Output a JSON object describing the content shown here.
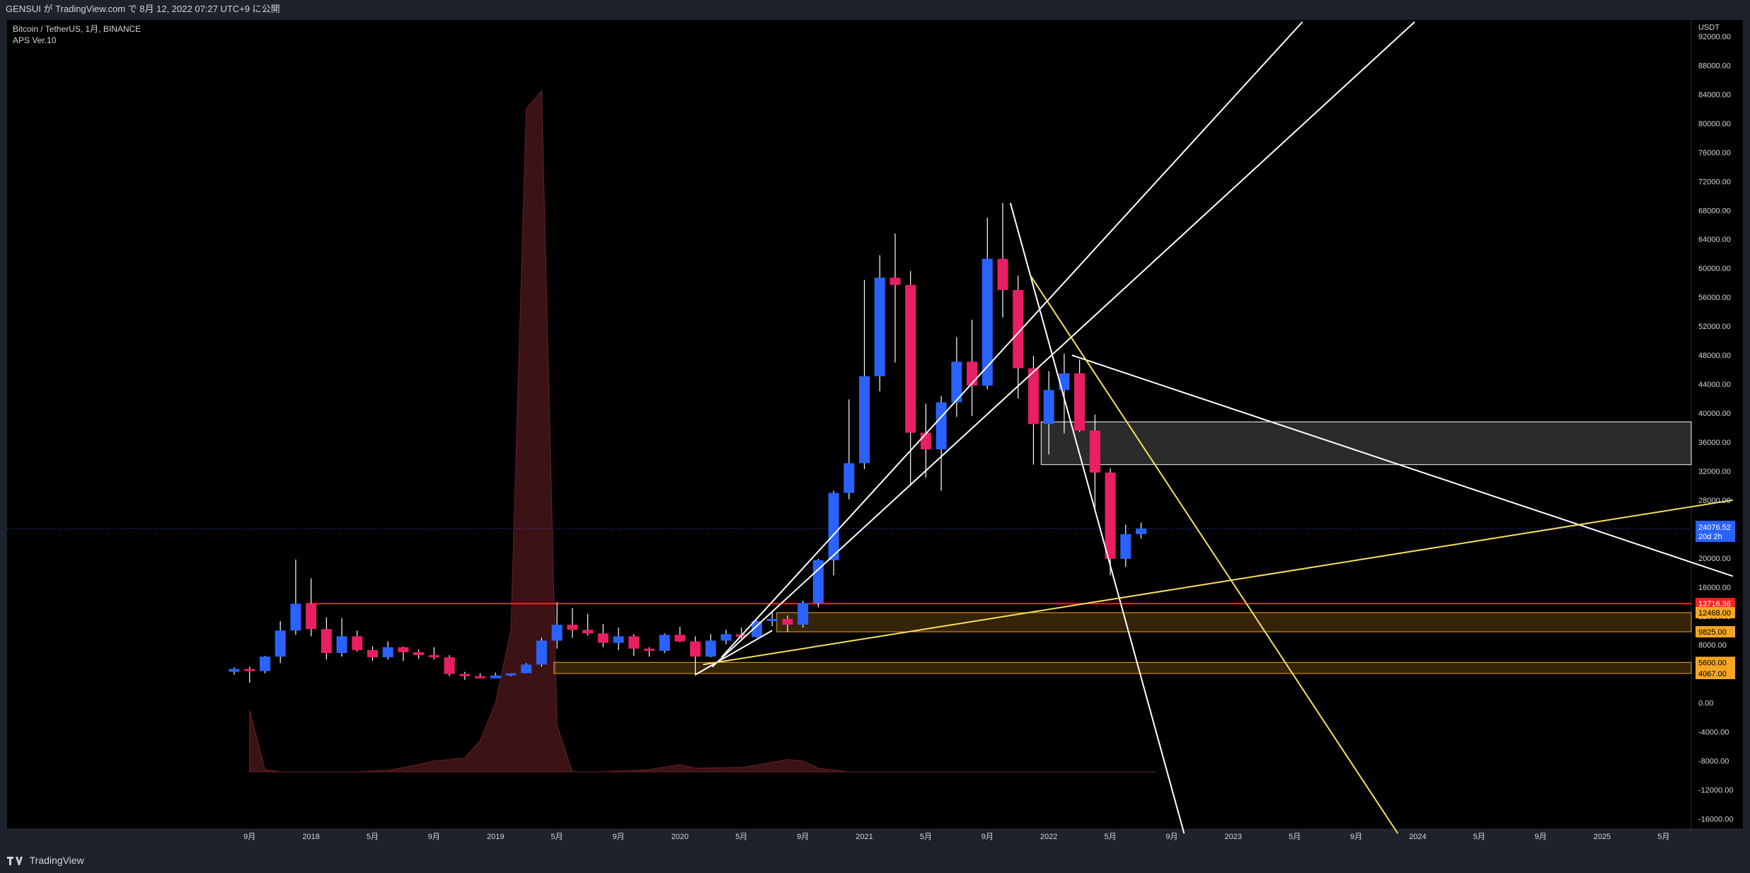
{
  "header": {
    "publish_line": "GENSUI が TradingView.com で 8月 12, 2022 07:27 UTC+9 に公開"
  },
  "footer": {
    "brand": "TradingView"
  },
  "colors": {
    "bull": "#2962ff",
    "bear": "#e91e63",
    "background": "#000000",
    "panel": "#1e222d",
    "wick": "#ffffff",
    "yellow_line": "#f6e05e",
    "white_line": "#ffffff",
    "red_line": "#ff1f1f",
    "orange_zone": "#f5a623",
    "volume_fill": "#3b1216"
  },
  "chart_data": {
    "type": "candlestick",
    "symbol_line": "Bitcoin / TetherUS, 1月, BINANCE",
    "indicator_line": "APS Ver.10",
    "y_unit": "USDT",
    "ylim": [
      -18000,
      94000
    ],
    "y_ticks": [
      92000,
      88000,
      84000,
      80000,
      76000,
      72000,
      68000,
      64000,
      60000,
      56000,
      52000,
      48000,
      44000,
      40000,
      36000,
      32000,
      28000,
      24000,
      20000,
      16000,
      12000,
      8000,
      0,
      -4000,
      -8000,
      -12000,
      -16000
    ],
    "y_tick_labels": [
      "92000.00",
      "88000.00",
      "84000.00",
      "80000.00",
      "76000.00",
      "72000.00",
      "68000.00",
      "64000.00",
      "60000.00",
      "56000.00",
      "52000.00",
      "48000.00",
      "44000.00",
      "40000.00",
      "36000.00",
      "32000.00",
      "28000.00",
      "24000.00",
      "20000.00",
      "16000.00",
      "12000.00",
      "8000.00",
      "0.00",
      "-4000.00",
      "-8000.00",
      "-12000.00",
      "-16000.00"
    ],
    "x_ticks": [
      {
        "label": "9月",
        "idx": 1
      },
      {
        "label": "2018",
        "idx": 5
      },
      {
        "label": "5月",
        "idx": 9
      },
      {
        "label": "9月",
        "idx": 13
      },
      {
        "label": "2019",
        "idx": 17
      },
      {
        "label": "5月",
        "idx": 21
      },
      {
        "label": "9月",
        "idx": 25
      },
      {
        "label": "2020",
        "idx": 29
      },
      {
        "label": "5月",
        "idx": 33
      },
      {
        "label": "9月",
        "idx": 37
      },
      {
        "label": "2021",
        "idx": 41
      },
      {
        "label": "5月",
        "idx": 45
      },
      {
        "label": "9月",
        "idx": 49
      },
      {
        "label": "2022",
        "idx": 53
      },
      {
        "label": "5月",
        "idx": 57
      },
      {
        "label": "9月",
        "idx": 61
      },
      {
        "label": "2023",
        "idx": 65
      },
      {
        "label": "5月",
        "idx": 69
      },
      {
        "label": "9月",
        "idx": 73
      },
      {
        "label": "2024",
        "idx": 77
      },
      {
        "label": "5月",
        "idx": 81
      },
      {
        "label": "9月",
        "idx": 85
      },
      {
        "label": "2025",
        "idx": 89
      },
      {
        "label": "5月",
        "idx": 93
      }
    ],
    "candles": [
      {
        "o": 4300,
        "h": 4900,
        "l": 3900,
        "c": 4700
      },
      {
        "o": 4700,
        "h": 5000,
        "l": 2800,
        "c": 4400
      },
      {
        "o": 4400,
        "h": 6500,
        "l": 4100,
        "c": 6400
      },
      {
        "o": 6400,
        "h": 11300,
        "l": 5500,
        "c": 10000
      },
      {
        "o": 10000,
        "h": 19800,
        "l": 9400,
        "c": 13700
      },
      {
        "o": 13700,
        "h": 17200,
        "l": 9200,
        "c": 10200
      },
      {
        "o": 10200,
        "h": 11800,
        "l": 6000,
        "c": 6900
      },
      {
        "o": 6900,
        "h": 11700,
        "l": 6400,
        "c": 9200
      },
      {
        "o": 9200,
        "h": 10000,
        "l": 7100,
        "c": 7300
      },
      {
        "o": 7300,
        "h": 7800,
        "l": 5800,
        "c": 6300
      },
      {
        "o": 6300,
        "h": 8500,
        "l": 6000,
        "c": 7700
      },
      {
        "o": 7700,
        "h": 7800,
        "l": 5800,
        "c": 7000
      },
      {
        "o": 7000,
        "h": 7400,
        "l": 6100,
        "c": 6600
      },
      {
        "o": 6600,
        "h": 7700,
        "l": 6000,
        "c": 6300
      },
      {
        "o": 6300,
        "h": 6600,
        "l": 3700,
        "c": 4000
      },
      {
        "o": 4000,
        "h": 4300,
        "l": 3200,
        "c": 3700
      },
      {
        "o": 3700,
        "h": 4100,
        "l": 3400,
        "c": 3400
      },
      {
        "o": 3400,
        "h": 4200,
        "l": 3400,
        "c": 3800
      },
      {
        "o": 3800,
        "h": 4100,
        "l": 3700,
        "c": 4100
      },
      {
        "o": 4100,
        "h": 5500,
        "l": 4100,
        "c": 5300
      },
      {
        "o": 5300,
        "h": 9000,
        "l": 5000,
        "c": 8600
      },
      {
        "o": 8600,
        "h": 13900,
        "l": 7500,
        "c": 10800
      },
      {
        "o": 10800,
        "h": 13100,
        "l": 9000,
        "c": 10100
      },
      {
        "o": 10100,
        "h": 12300,
        "l": 9300,
        "c": 9600
      },
      {
        "o": 9600,
        "h": 10900,
        "l": 7700,
        "c": 8300
      },
      {
        "o": 8300,
        "h": 10400,
        "l": 7300,
        "c": 9200
      },
      {
        "o": 9200,
        "h": 9500,
        "l": 6500,
        "c": 7500
      },
      {
        "o": 7500,
        "h": 7700,
        "l": 6400,
        "c": 7200
      },
      {
        "o": 7200,
        "h": 9600,
        "l": 6900,
        "c": 9400
      },
      {
        "o": 9400,
        "h": 10500,
        "l": 8400,
        "c": 8500
      },
      {
        "o": 8500,
        "h": 9200,
        "l": 3800,
        "c": 6400
      },
      {
        "o": 6400,
        "h": 9500,
        "l": 6300,
        "c": 8600
      },
      {
        "o": 8600,
        "h": 10100,
        "l": 8100,
        "c": 9500
      },
      {
        "o": 9500,
        "h": 10400,
        "l": 8900,
        "c": 9100
      },
      {
        "o": 9100,
        "h": 11400,
        "l": 9000,
        "c": 11300
      },
      {
        "o": 11300,
        "h": 12500,
        "l": 10600,
        "c": 11600
      },
      {
        "o": 11600,
        "h": 12100,
        "l": 9800,
        "c": 10800
      },
      {
        "o": 10800,
        "h": 14100,
        "l": 10400,
        "c": 13800
      },
      {
        "o": 13800,
        "h": 19900,
        "l": 13200,
        "c": 19700
      },
      {
        "o": 19700,
        "h": 29300,
        "l": 17600,
        "c": 29000
      },
      {
        "o": 29000,
        "h": 41900,
        "l": 28100,
        "c": 33100
      },
      {
        "o": 33100,
        "h": 58400,
        "l": 32300,
        "c": 45100
      },
      {
        "o": 45100,
        "h": 61800,
        "l": 43000,
        "c": 58700
      },
      {
        "o": 58700,
        "h": 64800,
        "l": 47000,
        "c": 57700
      },
      {
        "o": 57700,
        "h": 59600,
        "l": 30000,
        "c": 37300
      },
      {
        "o": 37300,
        "h": 41300,
        "l": 31100,
        "c": 35000
      },
      {
        "o": 35000,
        "h": 42400,
        "l": 29300,
        "c": 41500
      },
      {
        "o": 41500,
        "h": 50500,
        "l": 39500,
        "c": 47100
      },
      {
        "o": 47100,
        "h": 52900,
        "l": 39600,
        "c": 43800
      },
      {
        "o": 43800,
        "h": 67000,
        "l": 43300,
        "c": 61300
      },
      {
        "o": 61300,
        "h": 69000,
        "l": 53200,
        "c": 57000
      },
      {
        "o": 57000,
        "h": 59000,
        "l": 42000,
        "c": 46200
      },
      {
        "o": 46200,
        "h": 47900,
        "l": 32900,
        "c": 38500
      },
      {
        "o": 38500,
        "h": 45800,
        "l": 34300,
        "c": 43200
      },
      {
        "o": 43200,
        "h": 48200,
        "l": 37200,
        "c": 45500
      },
      {
        "o": 45500,
        "h": 47400,
        "l": 37400,
        "c": 37600
      },
      {
        "o": 37600,
        "h": 39800,
        "l": 26700,
        "c": 31800
      },
      {
        "o": 31800,
        "h": 32400,
        "l": 17600,
        "c": 19900
      },
      {
        "o": 19900,
        "h": 24600,
        "l": 18800,
        "c": 23300
      },
      {
        "o": 23300,
        "h": 24900,
        "l": 22700,
        "c": 24076
      }
    ],
    "volume_area": [
      {
        "idx": 1,
        "v": -1000
      },
      {
        "idx": 2,
        "v": -9200
      },
      {
        "idx": 3,
        "v": -9500
      },
      {
        "idx": 5,
        "v": -9500
      },
      {
        "idx": 8,
        "v": -9500
      },
      {
        "idx": 10,
        "v": -9300
      },
      {
        "idx": 12,
        "v": -8500
      },
      {
        "idx": 13,
        "v": -8000
      },
      {
        "idx": 15,
        "v": -7600
      },
      {
        "idx": 16,
        "v": -5200
      },
      {
        "idx": 17,
        "v": 0
      },
      {
        "idx": 18,
        "v": 10000
      },
      {
        "idx": 19,
        "v": 82000
      },
      {
        "idx": 20,
        "v": 84500
      },
      {
        "idx": 21,
        "v": -3000
      },
      {
        "idx": 22,
        "v": -9500
      },
      {
        "idx": 24,
        "v": -9500
      },
      {
        "idx": 27,
        "v": -9200
      },
      {
        "idx": 29,
        "v": -8500
      },
      {
        "idx": 30,
        "v": -9000
      },
      {
        "idx": 33,
        "v": -8900
      },
      {
        "idx": 35,
        "v": -8200
      },
      {
        "idx": 36,
        "v": -7800
      },
      {
        "idx": 37,
        "v": -8000
      },
      {
        "idx": 38,
        "v": -9000
      },
      {
        "idx": 40,
        "v": -9500
      },
      {
        "idx": 60,
        "v": -9500
      }
    ],
    "zones": [
      {
        "name": "",
        "from": 32900,
        "to": 38800,
        "x0": 52.5,
        "color": "#7a7a7a"
      },
      {
        "name": "",
        "from": 9825,
        "to": 12468,
        "x0": 35.3,
        "color": "#f5a623"
      },
      {
        "name": "",
        "from": 4067,
        "to": 5600,
        "x0": 20.8,
        "color": "#f5a623"
      }
    ],
    "levels": [
      {
        "value": 13716.36,
        "label": "13716.36",
        "color": "#ff1f1f",
        "x0": 4.7
      },
      {
        "value": 12468,
        "label": "12468.00",
        "color": "#f5a623"
      },
      {
        "value": 9825,
        "label": "9825.00",
        "color": "#f5a623"
      },
      {
        "value": 5600,
        "label": "5600.00",
        "color": "#f5a623"
      },
      {
        "value": 4067,
        "label": "4067.00",
        "color": "#f5a623"
      }
    ],
    "trend_lines": [
      {
        "color": "#ffffff",
        "x0": 31.7,
        "y0": 6300,
        "x1": 69.5,
        "y1": 94000
      },
      {
        "color": "#ffffff",
        "x0": 31.1,
        "y0": 5000,
        "x1": 76.8,
        "y1": 94000
      },
      {
        "color": "#ffffff",
        "x0": 30.0,
        "y0": 3900,
        "x1": 35.0,
        "y1": 10000
      },
      {
        "color": "#ffffff",
        "x0": 50.5,
        "y0": 69000,
        "x1": 61.8,
        "y1": -18000
      },
      {
        "color": "#ffffff",
        "x0": 54.5,
        "y0": 48000,
        "x1": 97.5,
        "y1": 17500
      },
      {
        "color": "#f6e05e",
        "x0": 51.8,
        "y0": 59000,
        "x1": 75.7,
        "y1": -18000
      },
      {
        "color": "#f6e05e",
        "x0": 30.5,
        "y0": 5300,
        "x1": 97.5,
        "y1": 28000
      }
    ],
    "current_price": {
      "value": 24076.52,
      "label": "24076.52",
      "countdown": "20d 2h"
    }
  }
}
